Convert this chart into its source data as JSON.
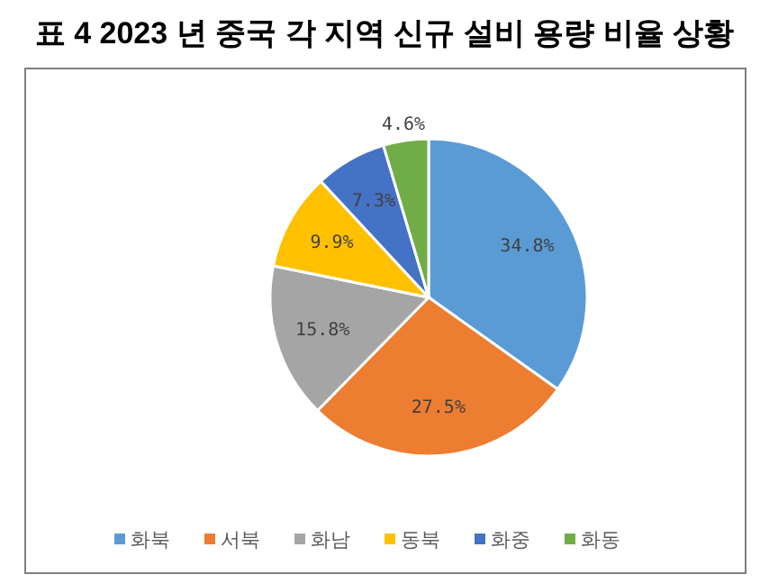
{
  "chart_data": {
    "type": "pie",
    "title": "표 4   2023 년 중국 각 지역 신규 설비 용량 비율 상황",
    "categories": [
      "화북",
      "서북",
      "화남",
      "동북",
      "화중",
      "화동"
    ],
    "values": [
      34.8,
      27.5,
      15.8,
      9.9,
      7.3,
      4.6
    ],
    "value_labels": [
      "34.8%",
      "27.5%",
      "15.8%",
      "9.9%",
      "7.3%",
      "4.6%"
    ],
    "colors": [
      "#5b9bd5",
      "#ed7d31",
      "#a5a5a5",
      "#ffc000",
      "#4472c4",
      "#70ad47"
    ],
    "legend": "bottom"
  }
}
